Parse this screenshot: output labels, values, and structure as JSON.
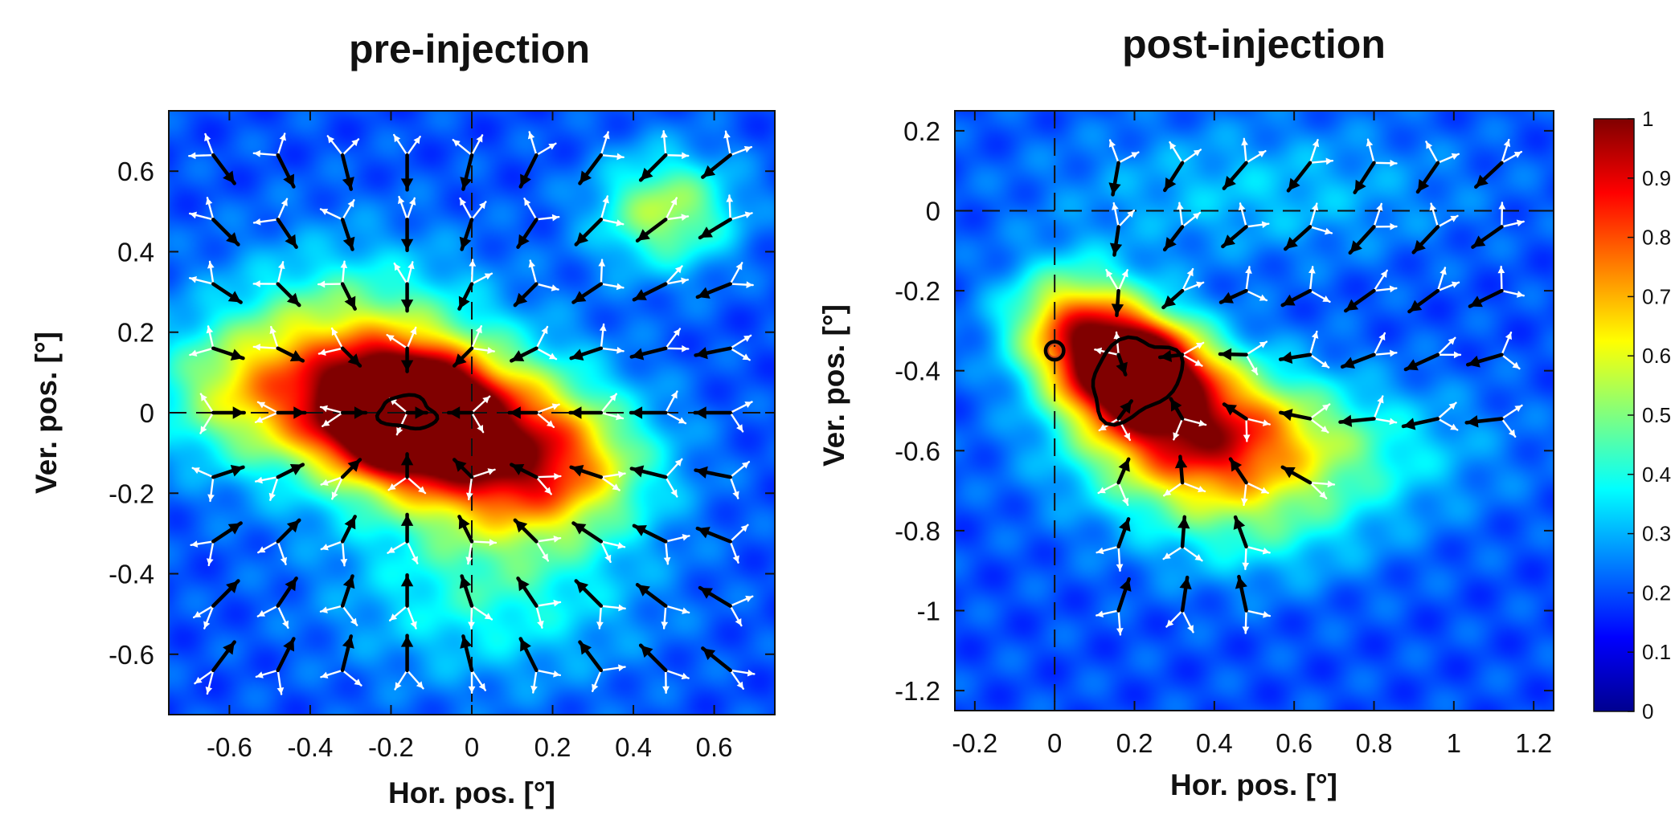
{
  "colors": {
    "background_field": "#3a4fc4",
    "axis": "#111111",
    "arrow_dark": "#000000",
    "arrow_light": "#ffffff",
    "contour": "#000000",
    "marker": "#d84a14"
  },
  "chart_data": [
    {
      "type": "heatmap",
      "title": "pre-injection",
      "xlabel": "Hor. pos. [°]",
      "ylabel": "Ver. pos. [°]",
      "xlim": [
        -0.75,
        0.75
      ],
      "ylim": [
        -0.75,
        0.75
      ],
      "x_ticks": [
        -0.6,
        -0.4,
        -0.2,
        0,
        0.2,
        0.4,
        0.6
      ],
      "x_tick_labels": [
        "-0.6",
        "-0.4",
        "-0.2",
        "0",
        "0.2",
        "0.4",
        "0.6"
      ],
      "y_ticks": [
        0.6,
        0.4,
        0.2,
        0,
        -0.2,
        -0.4,
        -0.6
      ],
      "y_tick_labels": [
        "0.6",
        "0.4",
        "0.2",
        "0",
        "-0.2",
        "-0.4",
        "-0.6"
      ],
      "crosshair": [
        0,
        0
      ],
      "hotspots": [
        {
          "x": -0.17,
          "y": 0.0,
          "sx": 0.12,
          "sy": 0.09,
          "amp": 1.0
        },
        {
          "x": -0.02,
          "y": -0.05,
          "sx": 0.22,
          "sy": 0.14,
          "amp": 0.55
        },
        {
          "x": 0.18,
          "y": -0.15,
          "sx": 0.18,
          "sy": 0.12,
          "amp": 0.42
        },
        {
          "x": -0.3,
          "y": 0.12,
          "sx": 0.22,
          "sy": 0.18,
          "amp": 0.4
        },
        {
          "x": 0.48,
          "y": 0.5,
          "sx": 0.12,
          "sy": 0.1,
          "amp": 0.35
        },
        {
          "x": -0.55,
          "y": 0.05,
          "sx": 0.18,
          "sy": 0.12,
          "amp": 0.28
        },
        {
          "x": 0.05,
          "y": -0.45,
          "sx": 0.25,
          "sy": 0.15,
          "amp": 0.2
        }
      ],
      "contour": {
        "x": -0.16,
        "y": 0.0,
        "rx": 0.07,
        "ry": 0.04
      },
      "grid_x": [
        -0.64,
        -0.48,
        -0.32,
        -0.16,
        0.0,
        0.16,
        0.32,
        0.48,
        0.64
      ],
      "grid_y": [
        0.64,
        0.48,
        0.32,
        0.16,
        0.0,
        -0.16,
        -0.32,
        -0.48,
        -0.64
      ],
      "mode": "pre",
      "center": [
        -0.16,
        0.0
      ]
    },
    {
      "type": "heatmap",
      "title": "post-injection",
      "xlabel": "Hor. pos. [°]",
      "ylabel": "Ver. pos. [°]",
      "xlim": [
        -0.25,
        1.25
      ],
      "ylim": [
        -1.25,
        0.25
      ],
      "x_ticks": [
        -0.2,
        0,
        0.2,
        0.4,
        0.6,
        0.8,
        1,
        1.2
      ],
      "x_tick_labels": [
        "-0.2",
        "0",
        "0.2",
        "0.4",
        "0.6",
        "0.8",
        "1",
        "1.2"
      ],
      "y_ticks": [
        0.2,
        0,
        -0.2,
        -0.4,
        -0.6,
        -0.8,
        -1,
        -1.2
      ],
      "y_tick_labels": [
        "0.2",
        "0",
        "-0.2",
        "-0.4",
        "-0.6",
        "-0.8",
        "-1",
        "-1.2"
      ],
      "crosshair": [
        0,
        0
      ],
      "hotspots": [
        {
          "x": 0.2,
          "y": -0.4,
          "sx": 0.12,
          "sy": 0.09,
          "amp": 1.0
        },
        {
          "x": 0.35,
          "y": -0.55,
          "sx": 0.18,
          "sy": 0.12,
          "amp": 0.5
        },
        {
          "x": 0.05,
          "y": -0.28,
          "sx": 0.12,
          "sy": 0.1,
          "amp": 0.5
        },
        {
          "x": 0.55,
          "y": -0.6,
          "sx": 0.3,
          "sy": 0.12,
          "amp": 0.3
        },
        {
          "x": 0.5,
          "y": 0.05,
          "sx": 0.35,
          "sy": 0.12,
          "amp": 0.12
        },
        {
          "x": 0.5,
          "y": -0.8,
          "sx": 0.2,
          "sy": 0.1,
          "amp": 0.15
        }
      ],
      "contour": {
        "x": 0.2,
        "y": -0.42,
        "rx": 0.12,
        "ry": 0.09
      },
      "grid_x": [
        0.16,
        0.32,
        0.48,
        0.64,
        0.8,
        0.96,
        1.12
      ],
      "grid_y": [
        0.12,
        -0.04,
        -0.2,
        -0.36,
        -0.52,
        -0.68,
        -0.84,
        -1.0
      ],
      "mode": "post",
      "center": [
        0.2,
        -0.42
      ],
      "marker_circle": [
        0.0,
        -0.35
      ]
    }
  ],
  "colorbar": {
    "ticks": [
      1,
      0.9,
      0.8,
      0.7,
      0.6,
      0.5,
      0.4,
      0.3,
      0.2,
      0.1,
      0
    ],
    "tick_labels": [
      "1",
      "0.9",
      "0.8",
      "0.7",
      "0.6",
      "0.5",
      "0.4",
      "0.3",
      "0.2",
      "0.1",
      "0"
    ]
  }
}
